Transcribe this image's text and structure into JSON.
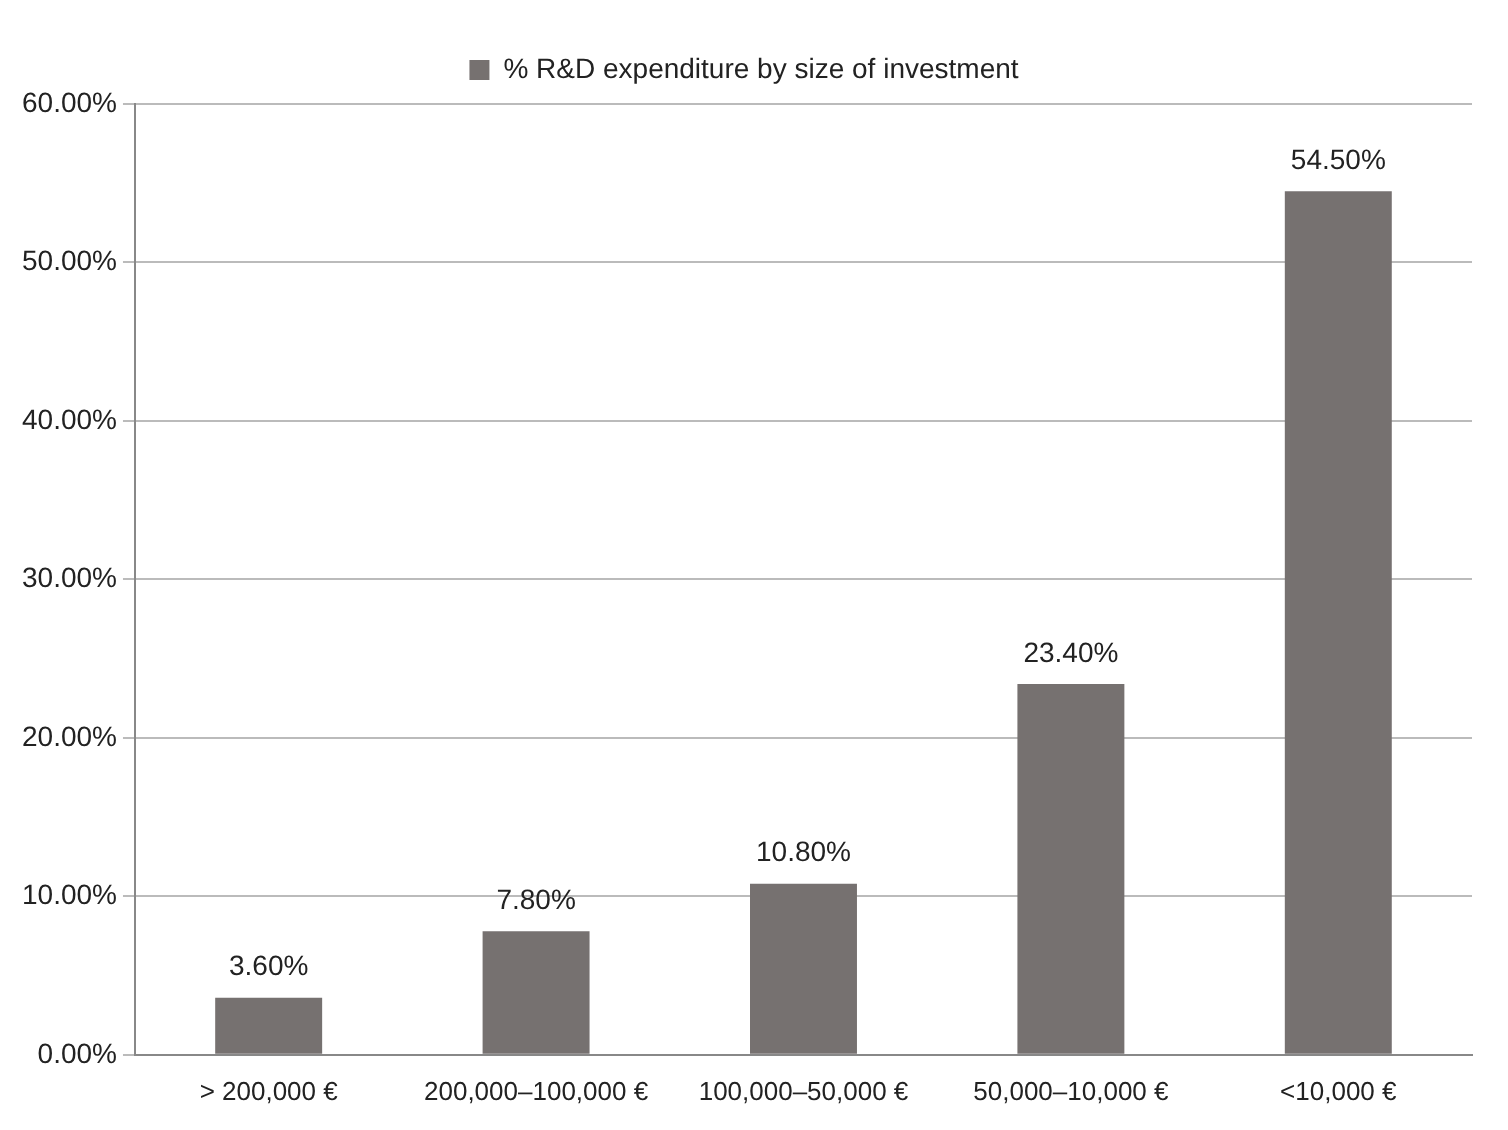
{
  "chart_data": {
    "type": "bar",
    "categories": [
      "> 200,000 €",
      "200,000–100,000 €",
      "100,000–50,000 €",
      "50,000–10,000 €",
      "<10,000 €"
    ],
    "series": [
      {
        "name": "% R&D expenditure by size of investment",
        "color": "#767170",
        "values": [
          3.6,
          7.8,
          10.8,
          23.4,
          54.5
        ],
        "value_labels": [
          "3.60%",
          "7.80%",
          "10.80%",
          "23.40%",
          "54.50%"
        ]
      }
    ],
    "ylim": [
      0,
      60
    ],
    "yticks": [
      {
        "value": 0,
        "label": "0.00%"
      },
      {
        "value": 10,
        "label": "10.00%"
      },
      {
        "value": 20,
        "label": "20.00%"
      },
      {
        "value": 30,
        "label": "30.00%"
      },
      {
        "value": 40,
        "label": "40.00%"
      },
      {
        "value": 50,
        "label": "50.00%"
      },
      {
        "value": 60,
        "label": "60.00%"
      }
    ],
    "grid": "y",
    "legend": "top"
  }
}
